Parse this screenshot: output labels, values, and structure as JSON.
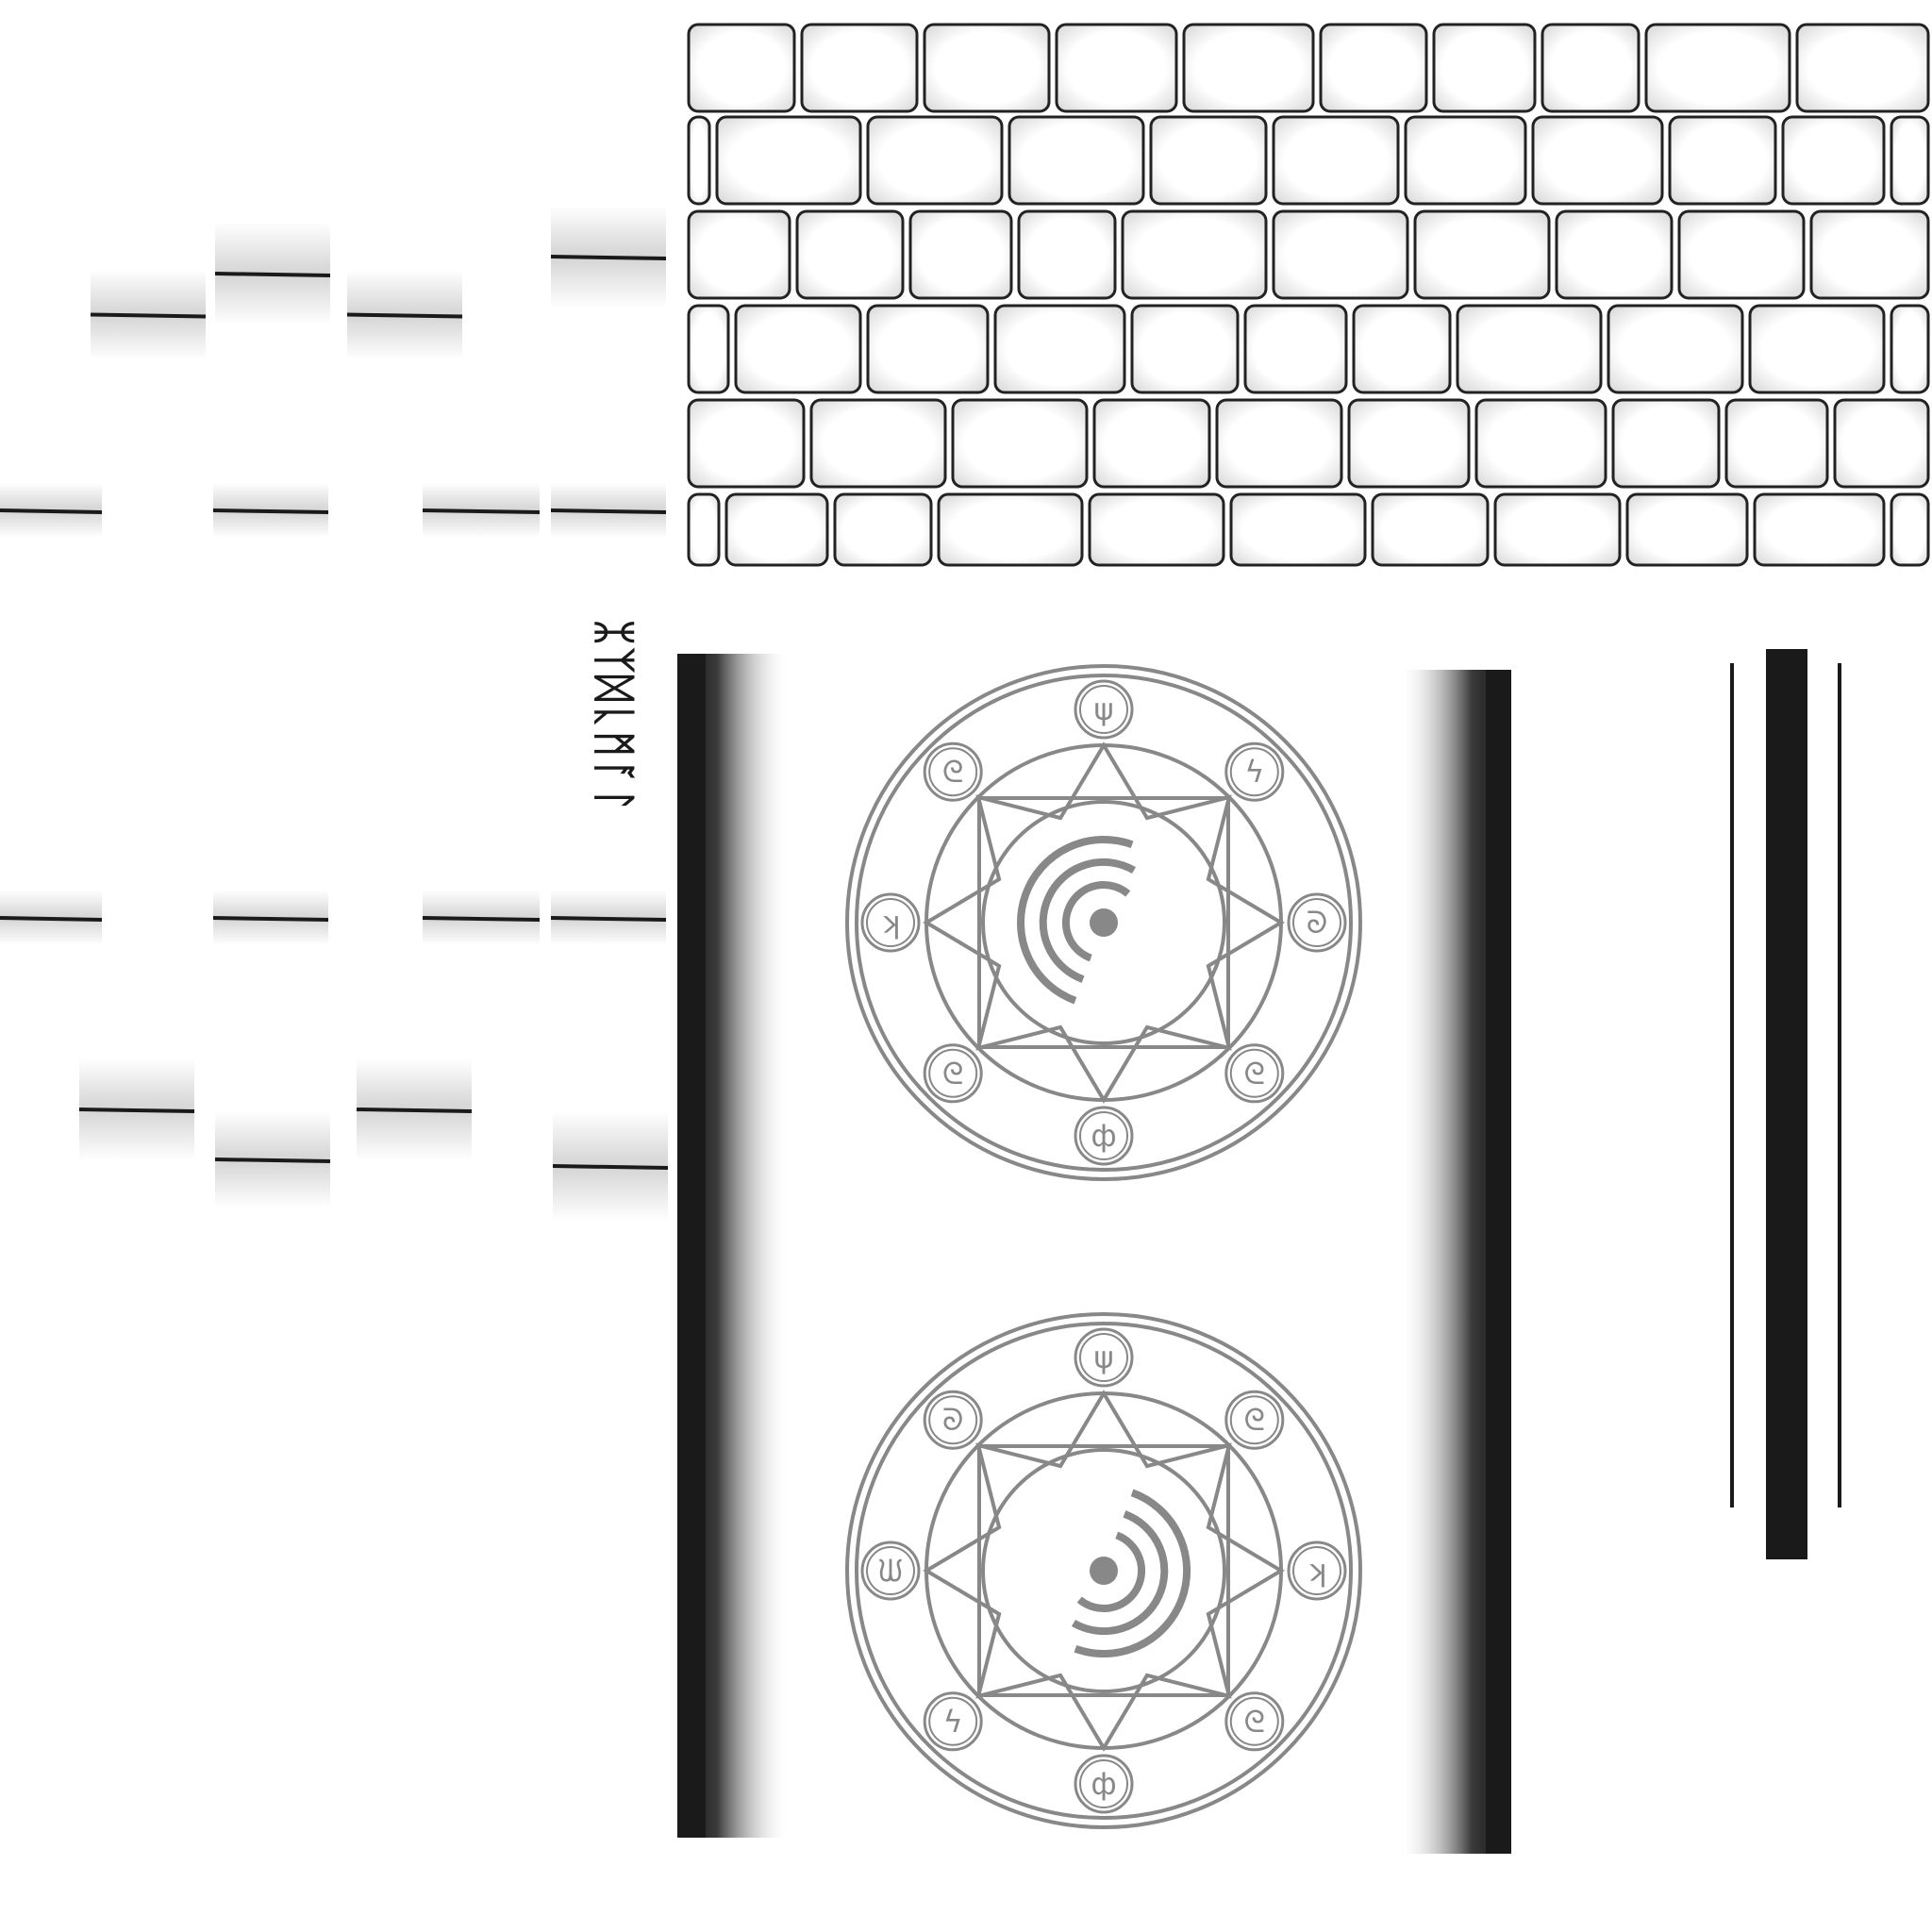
{
  "texture_atlas": {
    "background_color": "#ffffff",
    "ink_color": "#1a1a1a",
    "circle_line_color": "#888888",
    "brick_fill_color": "#f4f4f4",
    "brick_mortar_color": "#222222",
    "runic_inscription": "ᛯᛉᛞᚳᛗᚪᛚ",
    "magic_circles": [
      {
        "name": "upper-seal",
        "glyphs": [
          "ψ",
          "ϟ",
          "ᘐ",
          "ᘓ",
          "ф",
          "ᘓ",
          "ʞ",
          "ᘓ"
        ]
      },
      {
        "name": "lower-seal",
        "glyphs": [
          "ψ",
          "ᘓ",
          "ʞ",
          "ᘓ",
          "ф",
          "ϟ",
          "ᙎ",
          "ᘐ"
        ]
      }
    ],
    "icons": [
      "brick-wall-texture",
      "seam-line-strip",
      "runic-glyph-strip",
      "magic-circle",
      "vertical-bar-strip"
    ]
  }
}
